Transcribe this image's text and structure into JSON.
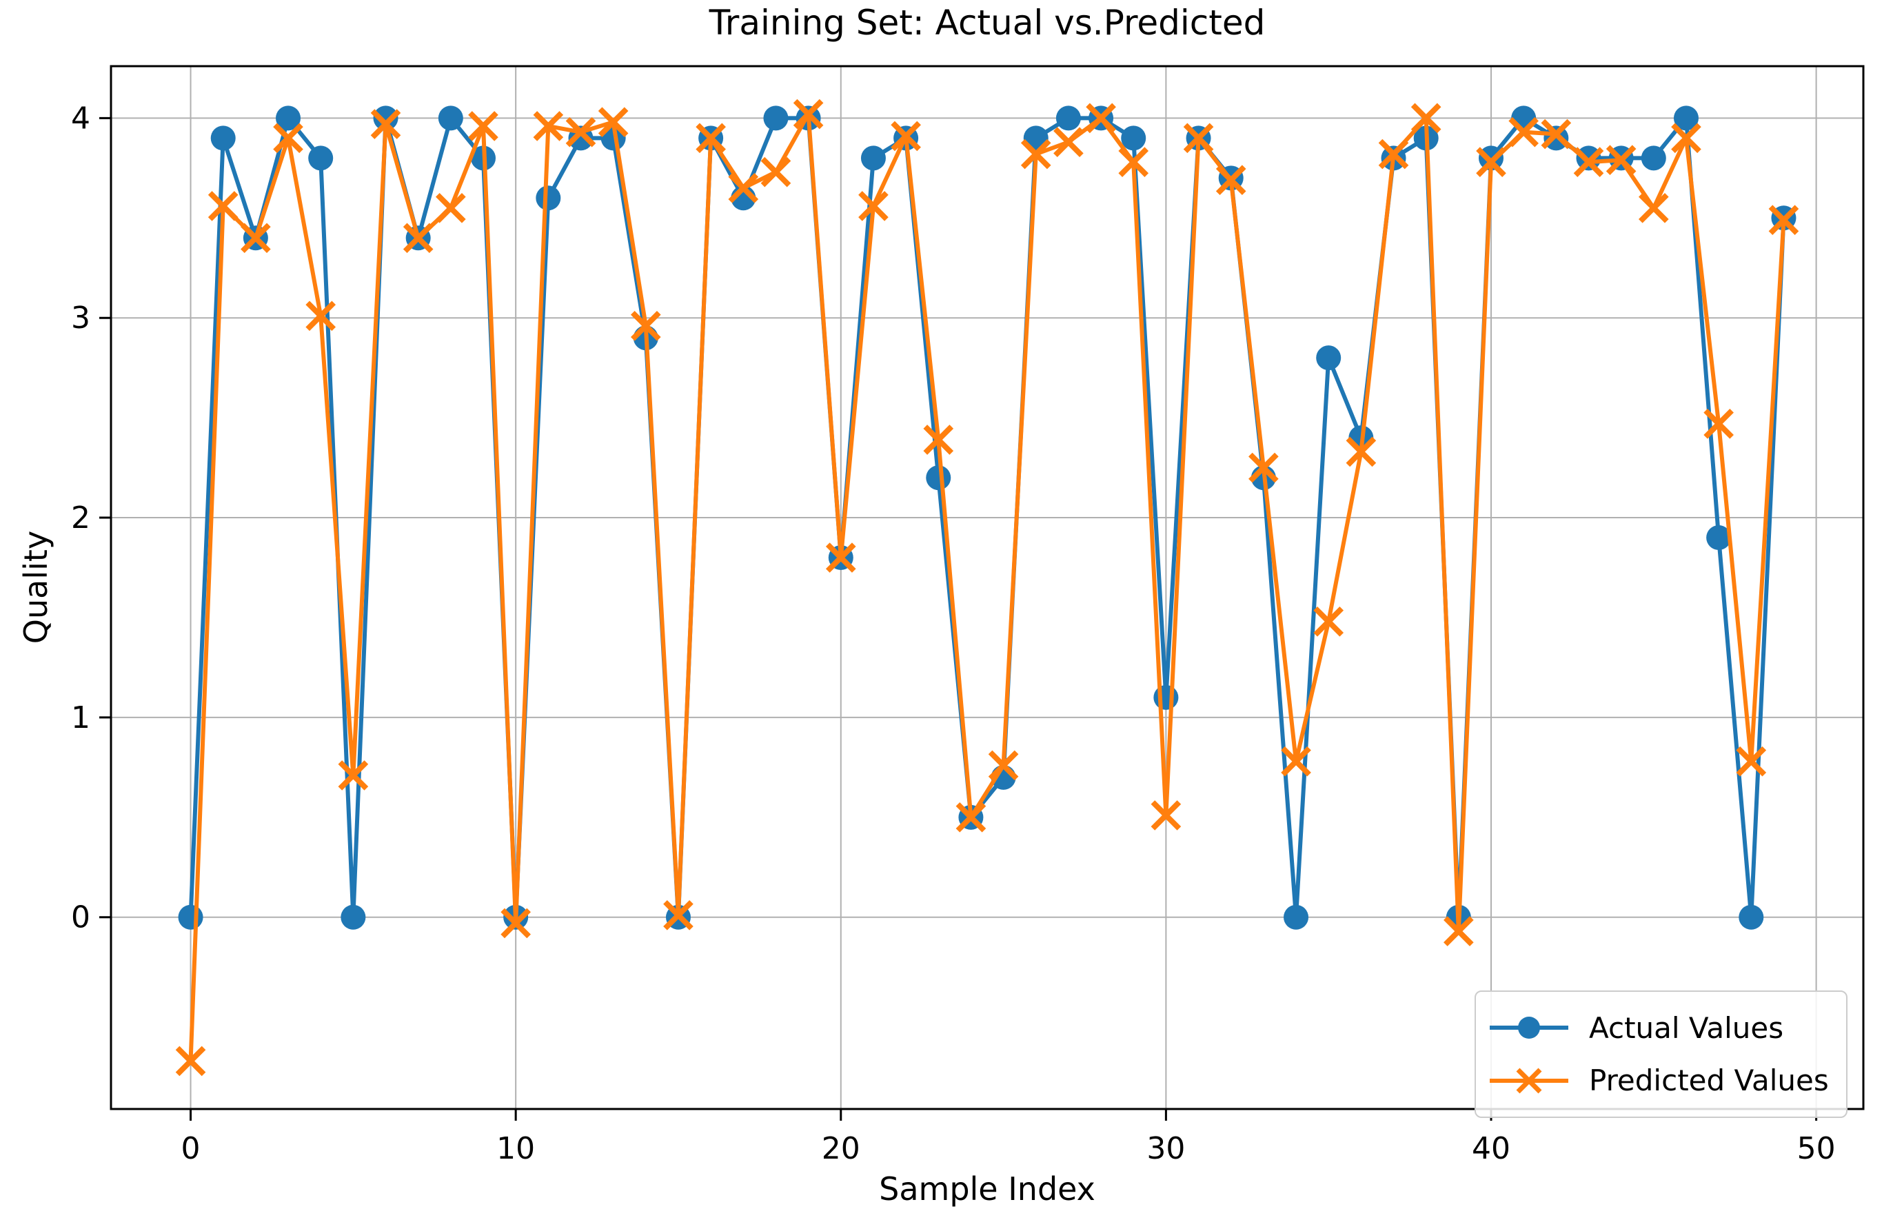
{
  "figure": {
    "title": "Training Set: Actual vs.Predicted",
    "x_axis_label": "Sample Index",
    "y_axis_label": "Quality"
  },
  "legend": {
    "position": "lower right",
    "items": [
      {
        "label": "Actual Values",
        "marker": "circle",
        "color": "#1f77b4"
      },
      {
        "label": "Predicted Values",
        "marker": "x",
        "color": "#ff7f0e"
      }
    ]
  },
  "chart_data": {
    "type": "line",
    "title": "Training Set: Actual vs.Predicted",
    "xlabel": "Sample Index",
    "ylabel": "Quality",
    "grid": true,
    "grid_color": "#b0b0b0",
    "spine_color": "#000000",
    "legend_position": "lower right",
    "xlim": [
      -2.45,
      51.45
    ],
    "ylim": [
      -0.96,
      4.26
    ],
    "x_ticks": [
      0,
      10,
      20,
      30,
      40,
      50
    ],
    "y_ticks": [
      0,
      1,
      2,
      3,
      4
    ],
    "x": [
      0,
      1,
      2,
      3,
      4,
      5,
      6,
      7,
      8,
      9,
      10,
      11,
      12,
      13,
      14,
      15,
      16,
      17,
      18,
      19,
      20,
      21,
      22,
      23,
      24,
      25,
      26,
      27,
      28,
      29,
      30,
      31,
      32,
      33,
      34,
      35,
      36,
      37,
      38,
      39,
      40,
      41,
      42,
      43,
      44,
      45,
      46,
      47,
      48,
      49
    ],
    "series": [
      {
        "name": "Actual Values",
        "marker": "circle",
        "color": "#1f77b4",
        "values": [
          0.0,
          3.9,
          3.4,
          4.0,
          3.8,
          0.0,
          4.0,
          3.4,
          4.0,
          3.8,
          0.0,
          3.6,
          3.9,
          3.9,
          2.9,
          0.0,
          3.9,
          3.6,
          4.0,
          4.0,
          1.8,
          3.8,
          3.9,
          2.2,
          0.5,
          0.7,
          3.9,
          4.0,
          4.0,
          3.9,
          1.1,
          3.9,
          3.7,
          2.2,
          0.0,
          2.8,
          2.4,
          3.8,
          3.9,
          0.0,
          3.8,
          4.0,
          3.9,
          3.8,
          3.8,
          3.8,
          4.0,
          1.9,
          0.0,
          3.5
        ]
      },
      {
        "name": "Predicted Values",
        "marker": "x",
        "color": "#ff7f0e",
        "values": [
          -0.72,
          3.56,
          3.4,
          3.9,
          3.01,
          0.71,
          3.97,
          3.4,
          3.55,
          3.96,
          -0.03,
          3.96,
          3.93,
          3.98,
          2.96,
          0.01,
          3.9,
          3.65,
          3.73,
          4.02,
          1.8,
          3.56,
          3.91,
          2.39,
          0.5,
          0.76,
          3.82,
          3.88,
          4.0,
          3.78,
          0.51,
          3.9,
          3.69,
          2.25,
          0.78,
          1.48,
          2.33,
          3.82,
          4.0,
          -0.07,
          3.78,
          3.93,
          3.92,
          3.78,
          3.79,
          3.55,
          3.9,
          2.47,
          0.78,
          3.49
        ]
      }
    ]
  }
}
